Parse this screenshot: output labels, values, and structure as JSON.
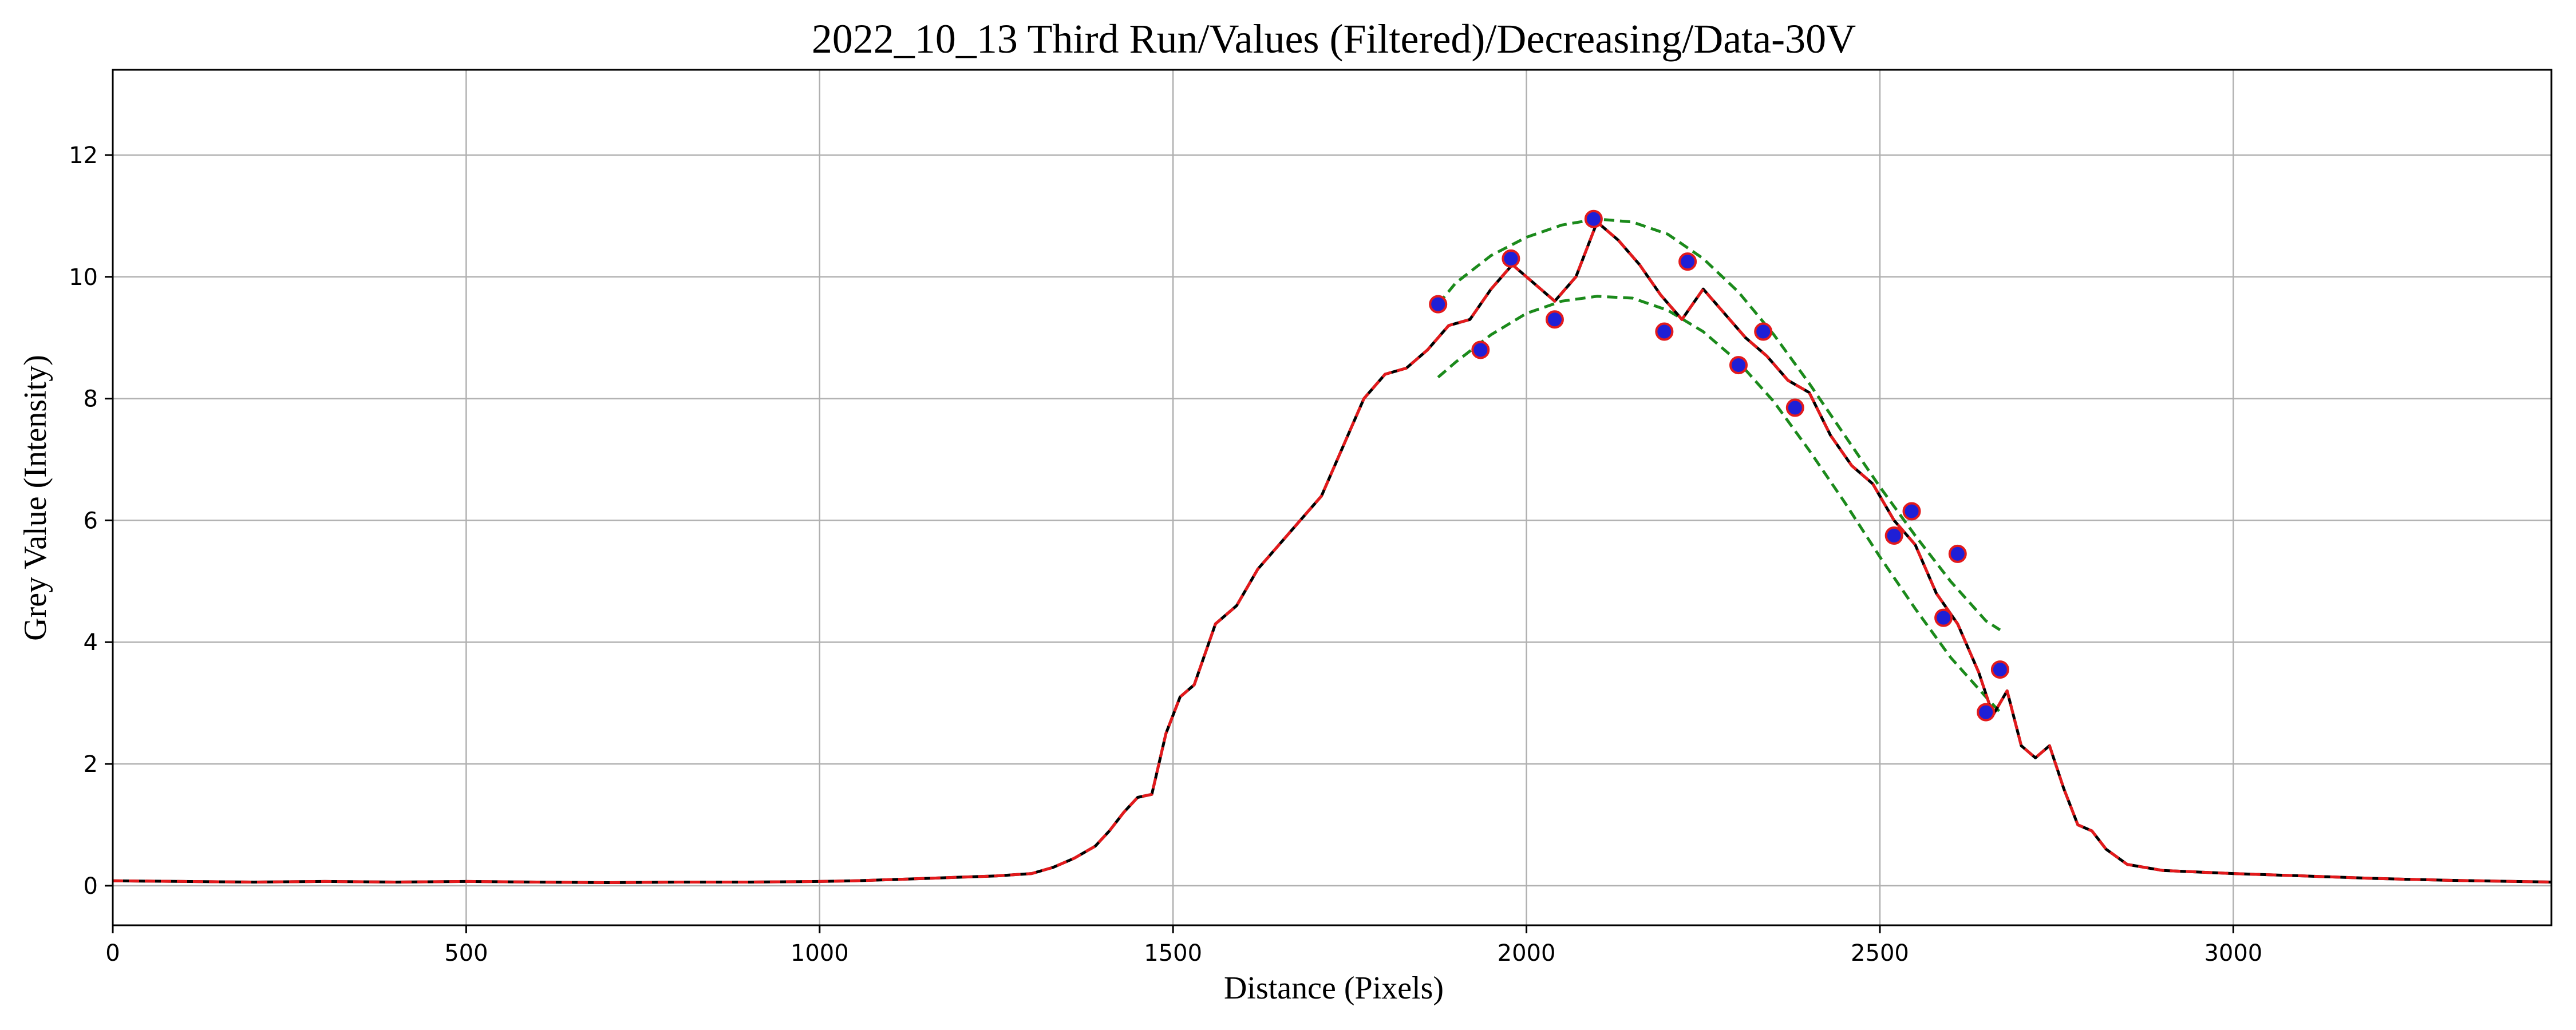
{
  "chart_data": {
    "type": "line",
    "title": "2022_10_13 Third Run/Values (Filtered)/Decreasing/Data-30V",
    "xlabel": "Distance (Pixels)",
    "ylabel": "Grey Value (Intensity)",
    "xlim": [
      0,
      3450
    ],
    "ylim": [
      -0.65,
      13.4
    ],
    "xticks": [
      0,
      500,
      1000,
      1500,
      2000,
      2500,
      3000
    ],
    "yticks": [
      0,
      2,
      4,
      6,
      8,
      10,
      12
    ],
    "grid": true,
    "colors": {
      "raw": "#000000",
      "filtered": "#e31a1c",
      "envelope": "#1b8a1b",
      "maxima": "#1f1fd6",
      "minima": "#1f1fd6",
      "marker_edge": "#e31a1c"
    },
    "series": [
      {
        "style": "solid",
        "role": "raw",
        "x": [
          0,
          100,
          200,
          300,
          400,
          500,
          600,
          700,
          800,
          900,
          1000,
          1050,
          1100,
          1150,
          1200,
          1250,
          1300,
          1330,
          1360,
          1390,
          1410,
          1430,
          1450,
          1470,
          1490,
          1510,
          1530,
          1560,
          1590,
          1620,
          1650,
          1680,
          1710,
          1740,
          1770,
          1800,
          1830,
          1860,
          1890,
          1920,
          1950,
          1980,
          2010,
          2040,
          2070,
          2100,
          2130,
          2160,
          2190,
          2220,
          2250,
          2280,
          2310,
          2340,
          2370,
          2400,
          2430,
          2460,
          2490,
          2520,
          2550,
          2580,
          2610,
          2640,
          2660,
          2680,
          2700,
          2720,
          2740,
          2760,
          2780,
          2800,
          2820,
          2850,
          2900,
          3000,
          3100,
          3200,
          3300,
          3450
        ],
        "y": [
          0.08,
          0.07,
          0.06,
          0.07,
          0.06,
          0.07,
          0.06,
          0.05,
          0.06,
          0.06,
          0.07,
          0.08,
          0.1,
          0.12,
          0.14,
          0.16,
          0.2,
          0.3,
          0.45,
          0.65,
          0.9,
          1.2,
          1.45,
          1.5,
          2.5,
          3.1,
          3.3,
          4.3,
          4.6,
          5.2,
          5.6,
          6.0,
          6.4,
          7.2,
          8.0,
          8.4,
          8.5,
          8.8,
          9.2,
          9.3,
          9.8,
          10.2,
          9.9,
          9.6,
          10.0,
          10.9,
          10.6,
          10.2,
          9.7,
          9.3,
          9.8,
          9.4,
          9.0,
          8.7,
          8.3,
          8.1,
          7.4,
          6.9,
          6.6,
          6.0,
          5.6,
          4.8,
          4.3,
          3.5,
          2.8,
          3.2,
          2.3,
          2.1,
          2.3,
          1.6,
          1.0,
          0.9,
          0.6,
          0.35,
          0.25,
          0.2,
          0.16,
          0.12,
          0.09,
          0.06
        ]
      },
      {
        "style": "dashed",
        "role": "filtered",
        "x": [
          0,
          100,
          200,
          300,
          400,
          500,
          600,
          700,
          800,
          900,
          1000,
          1050,
          1100,
          1150,
          1200,
          1250,
          1300,
          1330,
          1360,
          1390,
          1410,
          1430,
          1450,
          1470,
          1490,
          1510,
          1530,
          1560,
          1590,
          1620,
          1650,
          1680,
          1710,
          1740,
          1770,
          1800,
          1830,
          1860,
          1890,
          1920,
          1950,
          1980,
          2010,
          2040,
          2070,
          2100,
          2130,
          2160,
          2190,
          2220,
          2250,
          2280,
          2310,
          2340,
          2370,
          2400,
          2430,
          2460,
          2490,
          2520,
          2550,
          2580,
          2610,
          2640,
          2660,
          2680,
          2700,
          2720,
          2740,
          2760,
          2780,
          2800,
          2820,
          2850,
          2900,
          3000,
          3100,
          3200,
          3300,
          3450
        ],
        "y": [
          0.08,
          0.07,
          0.06,
          0.07,
          0.06,
          0.07,
          0.06,
          0.05,
          0.06,
          0.06,
          0.07,
          0.08,
          0.1,
          0.12,
          0.14,
          0.16,
          0.2,
          0.3,
          0.45,
          0.65,
          0.9,
          1.2,
          1.45,
          1.5,
          2.5,
          3.1,
          3.3,
          4.3,
          4.6,
          5.2,
          5.6,
          6.0,
          6.4,
          7.2,
          8.0,
          8.4,
          8.5,
          8.8,
          9.2,
          9.3,
          9.8,
          10.2,
          9.9,
          9.6,
          10.0,
          10.9,
          10.6,
          10.2,
          9.7,
          9.3,
          9.8,
          9.4,
          9.0,
          8.7,
          8.3,
          8.1,
          7.4,
          6.9,
          6.6,
          6.0,
          5.6,
          4.8,
          4.3,
          3.5,
          2.8,
          3.2,
          2.3,
          2.1,
          2.3,
          1.6,
          1.0,
          0.9,
          0.6,
          0.35,
          0.25,
          0.2,
          0.16,
          0.12,
          0.09,
          0.06
        ]
      },
      {
        "style": "dashed",
        "role": "envelope-upper",
        "x": [
          1875,
          1900,
          1950,
          2000,
          2050,
          2100,
          2150,
          2200,
          2250,
          2300,
          2350,
          2400,
          2450,
          2500,
          2550,
          2600,
          2650,
          2670
        ],
        "y": [
          9.55,
          9.9,
          10.35,
          10.65,
          10.85,
          10.95,
          10.9,
          10.7,
          10.3,
          9.75,
          9.05,
          8.25,
          7.4,
          6.55,
          5.75,
          5.0,
          4.35,
          4.2
        ]
      },
      {
        "style": "dashed",
        "role": "envelope-lower",
        "x": [
          1875,
          1900,
          1950,
          2000,
          2050,
          2100,
          2150,
          2200,
          2250,
          2300,
          2350,
          2400,
          2450,
          2500,
          2550,
          2600,
          2650,
          2670
        ],
        "y": [
          8.35,
          8.6,
          9.05,
          9.4,
          9.6,
          9.68,
          9.65,
          9.45,
          9.1,
          8.6,
          7.95,
          7.15,
          6.3,
          5.4,
          4.55,
          3.75,
          3.1,
          2.85
        ]
      }
    ],
    "maxima": {
      "x": [
        1875,
        1978,
        2095,
        2228,
        2335,
        2545,
        2610,
        2670
      ],
      "y": [
        9.55,
        10.3,
        10.95,
        10.25,
        9.1,
        6.15,
        5.45,
        3.55
      ]
    },
    "minima": {
      "x": [
        1935,
        2040,
        2195,
        2300,
        2380,
        2520,
        2590,
        2650
      ],
      "y": [
        8.8,
        9.3,
        9.1,
        8.55,
        7.85,
        5.75,
        4.4,
        2.85
      ]
    }
  }
}
